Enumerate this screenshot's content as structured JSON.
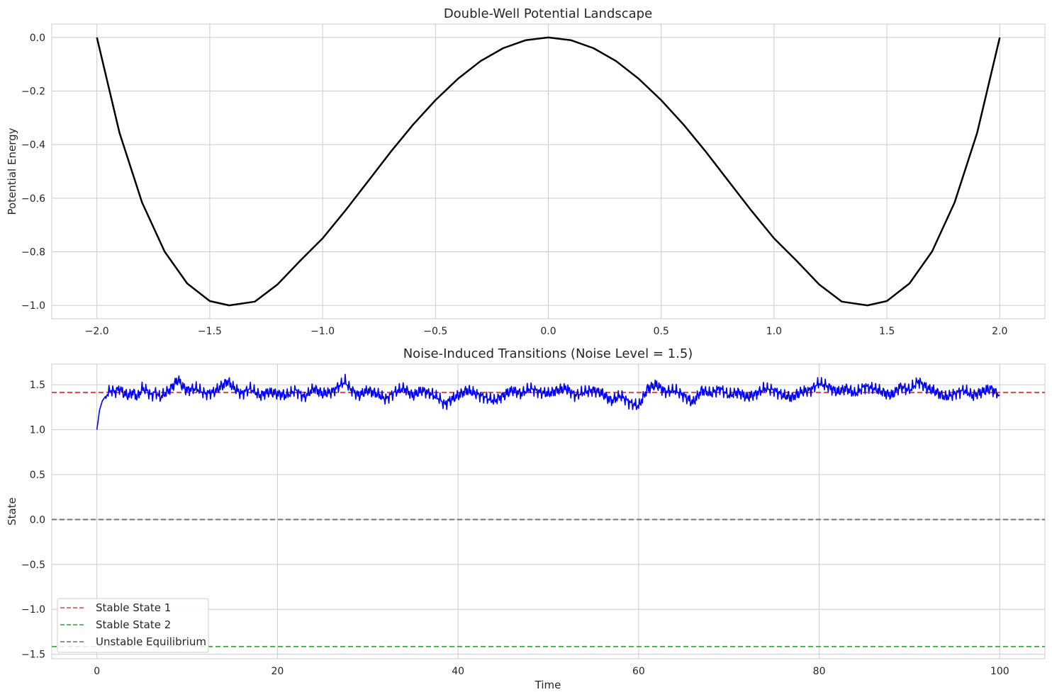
{
  "chart_data": [
    {
      "type": "line",
      "title": "Double-Well Potential Landscape",
      "xlabel": "",
      "ylabel": "Potential Energy",
      "xlim": [
        -2.2,
        2.2
      ],
      "ylim": [
        -1.05,
        0.05
      ],
      "xticks": [
        -2.0,
        -1.5,
        -1.0,
        -0.5,
        0.0,
        0.5,
        1.0,
        1.5,
        2.0
      ],
      "xtick_labels": [
        "−2.0",
        "−1.5",
        "−1.0",
        "−0.5",
        "0.0",
        "0.5",
        "1.0",
        "1.5",
        "2.0"
      ],
      "yticks": [
        0.0,
        -0.2,
        -0.4,
        -0.6,
        -0.8,
        -1.0
      ],
      "ytick_labels": [
        "0.0",
        "−0.2",
        "−0.4",
        "−0.6",
        "−0.8",
        "−1.0"
      ],
      "grid": true,
      "series": [
        {
          "color": "#000000",
          "x": [
            -2.0,
            -1.9,
            -1.8,
            -1.7,
            -1.6,
            -1.5,
            -1.414,
            -1.3,
            -1.2,
            -1.1,
            -1.0,
            -0.9,
            -0.8,
            -0.7,
            -0.6,
            -0.5,
            -0.4,
            -0.3,
            -0.2,
            -0.1,
            0.0,
            0.1,
            0.2,
            0.3,
            0.4,
            0.5,
            0.6,
            0.7,
            0.8,
            0.9,
            1.0,
            1.1,
            1.2,
            1.3,
            1.414,
            1.5,
            1.6,
            1.7,
            1.8,
            1.9,
            2.0
          ],
          "y": [
            0.0,
            -0.355,
            -0.616,
            -0.799,
            -0.918,
            -0.984,
            -1.0,
            -0.986,
            -0.922,
            -0.834,
            -0.75,
            -0.647,
            -0.538,
            -0.429,
            -0.326,
            -0.234,
            -0.154,
            -0.088,
            -0.04,
            -0.01,
            0.0,
            -0.01,
            -0.04,
            -0.088,
            -0.154,
            -0.234,
            -0.326,
            -0.429,
            -0.538,
            -0.647,
            -0.75,
            -0.834,
            -0.922,
            -0.986,
            -1.0,
            -0.984,
            -0.918,
            -0.799,
            -0.616,
            -0.355,
            0.0
          ]
        }
      ]
    },
    {
      "type": "line",
      "title": "Noise-Induced Transitions (Noise Level = 1.5)",
      "xlabel": "Time",
      "ylabel": "State",
      "xlim": [
        -5,
        105
      ],
      "ylim": [
        -1.55,
        1.73
      ],
      "xticks": [
        0,
        20,
        40,
        60,
        80,
        100
      ],
      "xtick_labels": [
        "0",
        "20",
        "40",
        "60",
        "80",
        "100"
      ],
      "yticks": [
        1.5,
        1.0,
        0.5,
        0.0,
        -0.5,
        -1.0,
        -1.5
      ],
      "ytick_labels": [
        "1.5",
        "1.0",
        "0.5",
        "0.0",
        "−0.5",
        "−1.0",
        "−1.5"
      ],
      "grid": true,
      "legend_position": "lower-left",
      "trajectory": {
        "color": "#0000ff",
        "x": [
          0,
          0.3,
          0.6,
          1,
          1.5,
          2,
          2.5,
          3,
          3.5,
          4,
          4.5,
          5,
          5.5,
          6,
          6.5,
          7,
          7.5,
          8,
          8.5,
          9,
          9.5,
          10,
          11,
          12,
          13,
          14,
          14.5,
          15,
          16,
          17,
          18,
          19,
          20,
          21,
          22,
          23,
          24,
          25,
          26,
          27,
          27.5,
          28,
          29,
          30,
          31,
          32,
          33,
          34,
          35,
          36,
          37,
          38,
          38.5,
          39,
          40,
          41,
          42,
          43,
          44,
          45,
          46,
          47,
          48,
          49,
          50,
          51,
          52,
          53,
          54,
          55,
          56,
          57,
          58,
          59,
          60,
          61,
          62,
          63,
          64,
          65,
          66,
          67,
          68,
          69,
          70,
          71,
          72,
          73,
          74,
          75,
          76,
          77,
          78,
          79,
          80,
          81,
          82,
          83,
          84,
          85,
          86,
          87,
          88,
          89,
          90,
          91,
          92,
          93,
          94,
          95,
          96,
          97,
          98,
          99,
          100
        ],
        "y": [
          1.0,
          1.22,
          1.32,
          1.38,
          1.44,
          1.42,
          1.46,
          1.4,
          1.38,
          1.42,
          1.36,
          1.46,
          1.44,
          1.38,
          1.42,
          1.36,
          1.4,
          1.44,
          1.5,
          1.56,
          1.48,
          1.44,
          1.46,
          1.4,
          1.42,
          1.5,
          1.54,
          1.48,
          1.4,
          1.46,
          1.38,
          1.42,
          1.4,
          1.38,
          1.44,
          1.36,
          1.46,
          1.4,
          1.42,
          1.5,
          1.54,
          1.46,
          1.38,
          1.44,
          1.4,
          1.34,
          1.42,
          1.46,
          1.38,
          1.44,
          1.4,
          1.34,
          1.28,
          1.32,
          1.38,
          1.44,
          1.4,
          1.36,
          1.32,
          1.38,
          1.44,
          1.4,
          1.46,
          1.42,
          1.4,
          1.44,
          1.46,
          1.38,
          1.42,
          1.44,
          1.4,
          1.32,
          1.38,
          1.3,
          1.26,
          1.46,
          1.5,
          1.42,
          1.44,
          1.38,
          1.3,
          1.44,
          1.4,
          1.46,
          1.38,
          1.42,
          1.36,
          1.4,
          1.46,
          1.44,
          1.38,
          1.36,
          1.42,
          1.44,
          1.52,
          1.48,
          1.42,
          1.46,
          1.4,
          1.48,
          1.46,
          1.42,
          1.38,
          1.48,
          1.44,
          1.54,
          1.46,
          1.42,
          1.36,
          1.4,
          1.44,
          1.38,
          1.42,
          1.46,
          1.38
        ]
      },
      "reference_lines": [
        {
          "label": "Stable State 1",
          "y": 1.414,
          "color": "#e8423c"
        },
        {
          "label": "Stable State 2",
          "y": -1.414,
          "color": "#3c9e3c"
        },
        {
          "label": "Unstable Equilibrium",
          "y": 0.0,
          "color": "#6e6e6e"
        }
      ]
    }
  ]
}
